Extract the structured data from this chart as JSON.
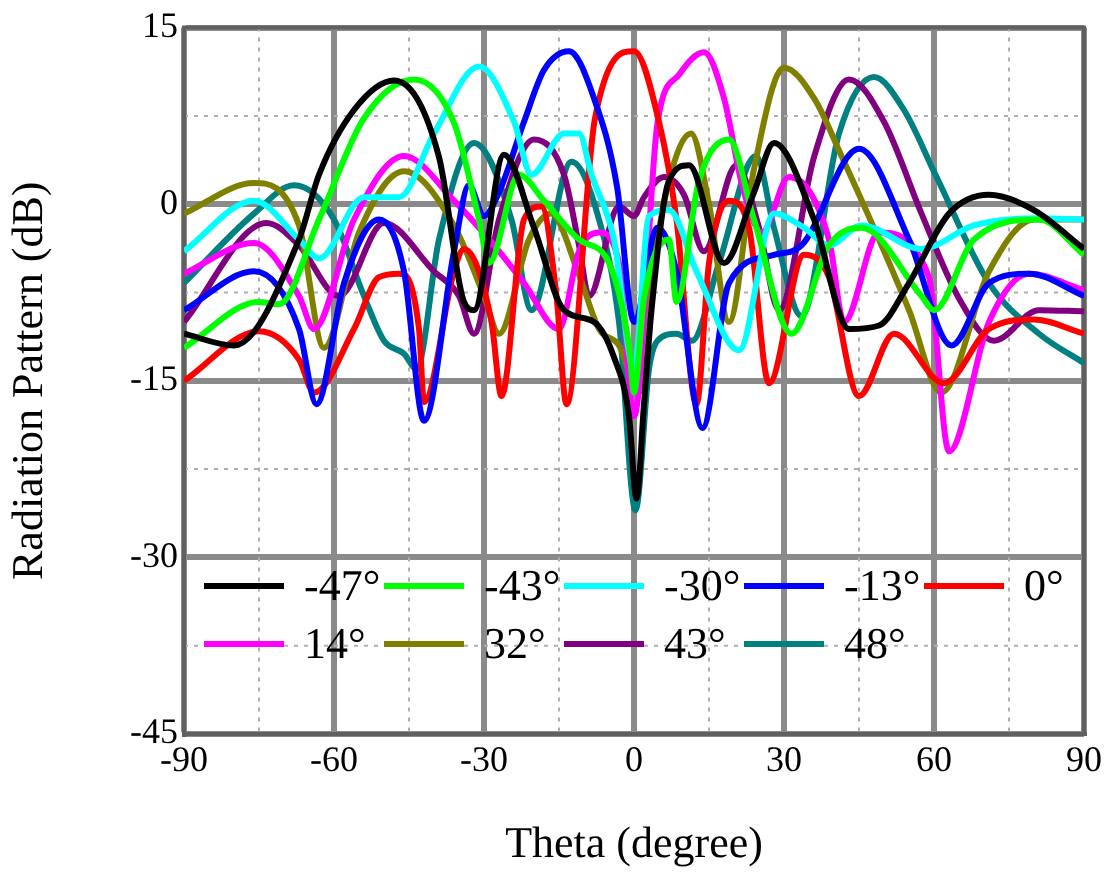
{
  "chart_data": {
    "type": "line",
    "xlabel": "Theta (degree)",
    "ylabel": "Radiation Pattern (dB)",
    "xlim": [
      -90,
      90
    ],
    "xticks": [
      -90,
      {
        "value": -75,
        "label": null
      },
      -60,
      {
        "value": -45,
        "label": null
      },
      -30,
      {
        "value": -15,
        "label": null
      },
      0,
      {
        "value": 15,
        "label": null
      },
      30,
      {
        "value": 45,
        "label": null
      },
      60,
      {
        "value": 75,
        "label": null
      },
      90
    ],
    "ylim": [
      -45,
      15
    ],
    "yticks": [
      -45,
      {
        "value": -37.5,
        "label": null
      },
      -30,
      {
        "value": -22.5,
        "label": null
      },
      -15,
      {
        "value": -7.5,
        "label": null
      },
      0,
      {
        "value": 7.5,
        "label": null
      },
      15
    ],
    "grid": true,
    "legend": "bottom",
    "marker": "none",
    "line_style": "solid",
    "series": [
      {
        "name": "-47°",
        "color": "#000000",
        "x": [
          -90,
          -80,
          -67,
          -63,
          -56,
          -48,
          -39,
          -34,
          -32,
          -26,
          -20,
          -14,
          -8,
          -4,
          -1,
          0.5,
          2,
          3.5,
          7,
          11,
          18,
          24,
          28,
          36,
          43,
          49,
          55,
          63,
          71,
          80,
          90
        ],
        "values": [
          -11,
          -12,
          -3,
          2.5,
          8,
          10.5,
          4,
          -8.3,
          -9,
          4.2,
          -2,
          -9,
          -10,
          -13,
          -18,
          -25,
          -17,
          -9,
          2,
          3.3,
          -5,
          1,
          5.2,
          -1.3,
          -10.6,
          -10.3,
          -6.7,
          -0.8,
          0.8,
          -0.5,
          -3.8
        ]
      },
      {
        "name": "-43°",
        "color": "#00ff00",
        "x": [
          -90,
          -75,
          -71,
          -63,
          -54,
          -44,
          -36,
          -31,
          -29,
          -23,
          -18,
          -11,
          -5,
          -1,
          0,
          2,
          7,
          8.5,
          13,
          19,
          24,
          31.5,
          39,
          45.5,
          57.5,
          60,
          68,
          81,
          90
        ],
        "values": [
          -12.2,
          -8.3,
          -8.5,
          -1.3,
          7.3,
          10.6,
          6.9,
          -1.3,
          -5,
          2.5,
          0.3,
          -3,
          -5,
          -12,
          -16,
          -8,
          -3,
          -8.3,
          2,
          5.5,
          -1.3,
          -11,
          -3.5,
          -2,
          -7.8,
          -9,
          -3,
          -1.3,
          -4.3
        ]
      },
      {
        "name": "-30°",
        "color": "#00ffff",
        "x": [
          -90,
          -76,
          -67,
          -63,
          -54,
          -47,
          -40,
          -31,
          -24,
          -20.5,
          -14,
          -11,
          -8.5,
          -4,
          0,
          3,
          7,
          12.5,
          21,
          28,
          34,
          39,
          45.5,
          57.5,
          68,
          80,
          90
        ],
        "values": [
          -4,
          0.3,
          -3,
          -4.6,
          0.6,
          0.6,
          6,
          11.7,
          7,
          2.5,
          6,
          6,
          2.5,
          -3,
          -14,
          -1,
          -0.5,
          -5.7,
          -12.4,
          -0.8,
          -2,
          -3.5,
          -1.8,
          -3.8,
          -1.8,
          -1.2,
          -1.3
        ]
      },
      {
        "name": "-13°",
        "color": "#0000ff",
        "x": [
          -90,
          -76,
          -67,
          -63.5,
          -58,
          -51,
          -46,
          -42,
          -36,
          -33,
          -30,
          -27,
          -22,
          -18,
          -13,
          -8,
          -3.4,
          0,
          4.7,
          8.5,
          13.7,
          19,
          28,
          33.5,
          45,
          55,
          63.5,
          71,
          79,
          90
        ],
        "values": [
          -9,
          -5.7,
          -10.6,
          -17,
          -6.7,
          -1.3,
          -5.7,
          -18.4,
          -4,
          1.6,
          -1,
          1,
          7,
          11.4,
          13,
          9,
          1.5,
          -10,
          -2,
          -5.7,
          -19,
          -6.7,
          -4.3,
          -3.5,
          4.7,
          -3,
          -12,
          -6.7,
          -5.9,
          -7.8
        ]
      },
      {
        "name": "0°",
        "color": "#ff0000",
        "x": [
          -90,
          -75,
          -67,
          -64,
          -56,
          -51,
          -47,
          -43,
          -42,
          -36,
          -34,
          -28.5,
          -26.5,
          -22,
          -18.5,
          -15.5,
          -13.5,
          -7.8,
          0,
          5,
          8.5,
          12.5,
          15,
          19,
          23,
          27,
          34,
          39,
          45,
          52,
          62,
          71,
          80,
          90
        ],
        "values": [
          -15,
          -10.8,
          -13.2,
          -16,
          -10.6,
          -6.2,
          -5.9,
          -10.6,
          -16.8,
          -5.7,
          -3.8,
          -10,
          -16.3,
          -1.3,
          -0.2,
          -7.8,
          -17,
          7.3,
          13,
          7,
          -1.3,
          -17,
          -5,
          0.3,
          -2,
          -15.2,
          -4.3,
          -6.2,
          -16.3,
          -11,
          -15.2,
          -10.6,
          -9.8,
          -11
        ]
      },
      {
        "name": "14°",
        "color": "#ff00ff",
        "x": [
          -90,
          -76,
          -67,
          -64,
          -56,
          -46,
          -36,
          -27,
          -22,
          -15,
          -11,
          -7,
          -3,
          0,
          4.7,
          9,
          14,
          18,
          21.7,
          25.6,
          31,
          39,
          42,
          49,
          59,
          63,
          71,
          79,
          90
        ],
        "values": [
          -5.9,
          -3.3,
          -7.8,
          -10.6,
          -1.3,
          4.1,
          0.3,
          -4,
          -6.7,
          -10.6,
          -4,
          -2.4,
          -5,
          -18,
          6.9,
          11,
          12.9,
          9,
          1.5,
          -2.4,
          2.3,
          -3,
          -10,
          -2.4,
          -6.2,
          -21,
          -10,
          -5.9,
          -7.3
        ]
      },
      {
        "name": "32°",
        "color": "#808000",
        "x": [
          -90,
          -76,
          -67,
          -62,
          -55,
          -46,
          -36,
          -30,
          -27,
          -21,
          -16.6,
          -11,
          -7,
          -3,
          1,
          4,
          7,
          11.4,
          15,
          19,
          24,
          30,
          36,
          41.5,
          49,
          55,
          61.5,
          71,
          80,
          90
        ],
        "values": [
          -0.8,
          1.8,
          -1.8,
          -12.2,
          -2.4,
          2.8,
          -1.8,
          -7.8,
          -11,
          -3,
          -0.8,
          -6,
          -10.6,
          -12,
          -16,
          -5,
          2,
          6,
          0,
          -10,
          3,
          11.6,
          9,
          4.1,
          -3,
          -9,
          -16,
          -5.7,
          -1.3,
          -1.3
        ]
      },
      {
        "name": "43°",
        "color": "#800080",
        "x": [
          -90,
          -73.5,
          -67,
          -59,
          -50,
          -40,
          -35,
          -32,
          -27,
          -20,
          -14,
          -11,
          -9,
          -3,
          0,
          2,
          6,
          10,
          14,
          20.5,
          25,
          29,
          36,
          43,
          50,
          57.5,
          65,
          72,
          81,
          90
        ],
        "values": [
          -10,
          -1.6,
          -3.5,
          -7.8,
          -1.6,
          -5.7,
          -7.8,
          -11,
          -1.3,
          5.5,
          2.5,
          -3.5,
          -7.8,
          -0.2,
          -1,
          0.6,
          2.3,
          0.8,
          -4,
          3.3,
          -2,
          -9,
          4,
          10.6,
          7,
          -0.8,
          -8,
          -11.6,
          -9,
          -9.1
        ]
      },
      {
        "name": "48°",
        "color": "#008080",
        "x": [
          -90,
          -76,
          -68,
          -60,
          -54,
          -50,
          -46,
          -43.5,
          -39,
          -32,
          -24.5,
          -20.5,
          -12.5,
          -7,
          -3,
          0.3,
          3,
          4.7,
          8.5,
          11.6,
          17,
          24.4,
          28,
          33.5,
          41,
          48,
          54,
          60.3,
          71,
          81,
          90
        ],
        "values": [
          -6.7,
          -0.8,
          1.6,
          -1.3,
          -7.8,
          -11.6,
          -12.7,
          -14,
          -3,
          5.2,
          -1.3,
          -9,
          3.6,
          -1.3,
          -10,
          -26,
          -14,
          -11.6,
          -11,
          -11.6,
          -5,
          4.1,
          -2,
          -9.5,
          6,
          10.8,
          8,
          2.5,
          -6.7,
          -11,
          -13.5
        ]
      }
    ]
  }
}
